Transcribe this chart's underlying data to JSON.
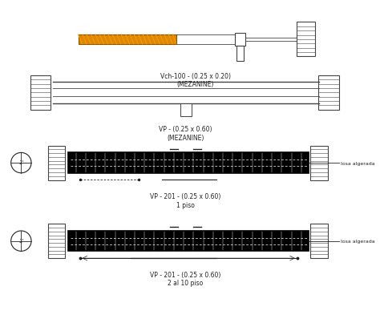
{
  "bg_color": "#ffffff",
  "line_color": "#444444",
  "orange_color": "#cc7700",
  "dark_color": "#222222",
  "title1": "Vch-100 - (0.25 x 0.20)\n(MEZANINE)",
  "title2": "VP - (0.25 x 0.60)\n(MEZANINE)",
  "title3": "VP - 201 - (0.25 x 0.60)\n1 piso",
  "title4": "VP - 201 - (0.25 x 0.60)\n2 al 10 piso",
  "label_losa": "losa algerada",
  "label_1prime": "1'"
}
